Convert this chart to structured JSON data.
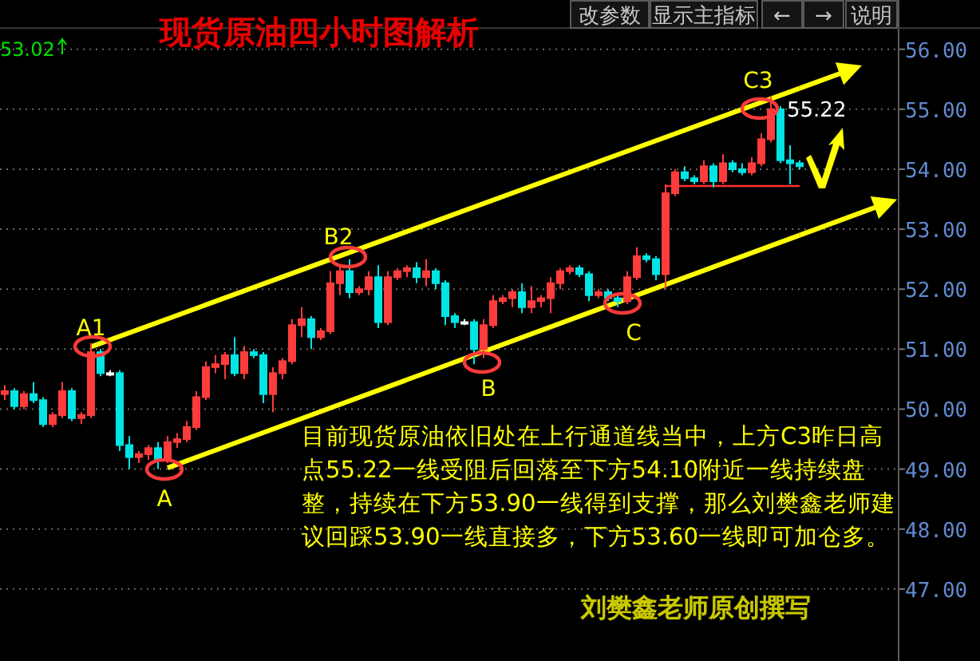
{
  "chart_data": {
    "type": "candlestick",
    "title": "现货原油四小时图解析",
    "categories": [
      null,
      null,
      null,
      null,
      null,
      null,
      null,
      null,
      null,
      null,
      null,
      null,
      null,
      null,
      null,
      null,
      null,
      null,
      null,
      null,
      null,
      null,
      null,
      null,
      null,
      null,
      null,
      null,
      null,
      null,
      null,
      null,
      null,
      null,
      null,
      null,
      null,
      null,
      null,
      null,
      null,
      null,
      null,
      null,
      null,
      null,
      null,
      null,
      null,
      null,
      null,
      null,
      null,
      null,
      null,
      null,
      null,
      null,
      null,
      null,
      null,
      null,
      null,
      null,
      null,
      null,
      null,
      null,
      null,
      null,
      null,
      null,
      null,
      null,
      null,
      null,
      null,
      null,
      null,
      null,
      null,
      null,
      null,
      null
    ],
    "ohlc": [
      [
        50.25,
        50.4,
        50.15,
        50.3
      ],
      [
        50.3,
        50.35,
        50.0,
        50.05
      ],
      [
        50.05,
        50.3,
        50.0,
        50.25
      ],
      [
        50.25,
        50.45,
        50.1,
        50.15
      ],
      [
        50.15,
        50.2,
        49.7,
        49.75
      ],
      [
        49.75,
        49.95,
        49.7,
        49.9
      ],
      [
        49.9,
        50.45,
        49.85,
        50.3
      ],
      [
        50.3,
        50.35,
        49.8,
        49.85
      ],
      [
        49.85,
        49.95,
        49.75,
        49.9
      ],
      [
        49.9,
        51.1,
        49.85,
        50.95
      ],
      [
        50.95,
        51.0,
        50.55,
        50.6
      ],
      [
        50.6,
        50.65,
        50.55,
        50.6
      ],
      [
        50.6,
        50.65,
        49.3,
        49.4
      ],
      [
        49.4,
        49.55,
        49.0,
        49.2
      ],
      [
        49.2,
        49.3,
        49.1,
        49.25
      ],
      [
        49.25,
        49.4,
        49.15,
        49.35
      ],
      [
        49.35,
        49.45,
        49.0,
        49.15
      ],
      [
        49.15,
        49.55,
        49.1,
        49.45
      ],
      [
        49.45,
        49.6,
        49.35,
        49.5
      ],
      [
        49.5,
        49.8,
        49.45,
        49.7
      ],
      [
        49.7,
        50.3,
        49.65,
        50.2
      ],
      [
        50.2,
        50.8,
        50.15,
        50.7
      ],
      [
        50.7,
        50.9,
        50.6,
        50.75
      ],
      [
        50.75,
        50.95,
        50.5,
        50.9
      ],
      [
        50.9,
        51.2,
        50.55,
        50.6
      ],
      [
        50.6,
        51.05,
        50.5,
        50.95
      ],
      [
        50.95,
        51.0,
        50.85,
        50.9
      ],
      [
        50.9,
        50.95,
        50.1,
        50.25
      ],
      [
        50.25,
        50.7,
        49.95,
        50.6
      ],
      [
        50.6,
        50.85,
        50.5,
        50.8
      ],
      [
        50.8,
        51.5,
        50.75,
        51.4
      ],
      [
        51.4,
        51.7,
        51.2,
        51.5
      ],
      [
        51.5,
        51.55,
        51.0,
        51.2
      ],
      [
        51.2,
        51.35,
        51.15,
        51.3
      ],
      [
        51.3,
        52.3,
        51.25,
        52.1
      ],
      [
        52.1,
        52.4,
        51.9,
        52.3
      ],
      [
        52.3,
        52.5,
        51.85,
        51.95
      ],
      [
        51.95,
        52.05,
        51.9,
        52.0
      ],
      [
        52.0,
        52.3,
        51.9,
        52.2
      ],
      [
        52.2,
        52.4,
        51.35,
        51.45
      ],
      [
        51.45,
        52.3,
        51.4,
        52.2
      ],
      [
        52.2,
        52.35,
        52.15,
        52.3
      ],
      [
        52.3,
        52.4,
        52.2,
        52.35
      ],
      [
        52.35,
        52.45,
        52.1,
        52.2
      ],
      [
        52.2,
        52.5,
        52.05,
        52.3
      ],
      [
        52.3,
        52.35,
        52.0,
        52.1
      ],
      [
        52.1,
        52.15,
        51.4,
        51.55
      ],
      [
        51.55,
        51.6,
        51.35,
        51.45
      ],
      [
        51.45,
        51.5,
        51.4,
        51.45
      ],
      [
        51.45,
        51.5,
        50.75,
        51.0
      ],
      [
        51.0,
        51.5,
        50.85,
        51.4
      ],
      [
        51.4,
        51.9,
        51.35,
        51.8
      ],
      [
        51.8,
        51.9,
        51.75,
        51.85
      ],
      [
        51.85,
        52.0,
        51.7,
        51.95
      ],
      [
        51.95,
        52.1,
        51.6,
        51.7
      ],
      [
        51.7,
        52.05,
        51.6,
        51.8
      ],
      [
        51.8,
        51.9,
        51.7,
        51.85
      ],
      [
        51.85,
        52.2,
        51.6,
        52.1
      ],
      [
        52.1,
        52.35,
        52.0,
        52.3
      ],
      [
        52.3,
        52.4,
        52.25,
        52.35
      ],
      [
        52.35,
        52.4,
        52.2,
        52.25
      ],
      [
        52.25,
        52.3,
        51.8,
        51.9
      ],
      [
        51.9,
        52.0,
        51.85,
        51.95
      ],
      [
        51.95,
        52.0,
        51.8,
        51.85
      ],
      [
        51.85,
        51.9,
        51.7,
        51.8
      ],
      [
        51.8,
        52.3,
        51.75,
        52.2
      ],
      [
        52.2,
        52.7,
        52.15,
        52.55
      ],
      [
        52.55,
        52.6,
        52.45,
        52.5
      ],
      [
        52.5,
        52.55,
        52.15,
        52.25
      ],
      [
        52.25,
        53.75,
        52.0,
        53.6
      ],
      [
        53.6,
        54.0,
        53.55,
        53.95
      ],
      [
        53.95,
        54.05,
        53.8,
        53.85
      ],
      [
        53.85,
        53.9,
        53.75,
        53.8
      ],
      [
        53.8,
        54.15,
        53.75,
        54.05
      ],
      [
        54.05,
        54.1,
        53.7,
        53.8
      ],
      [
        53.8,
        54.25,
        53.75,
        54.1
      ],
      [
        54.1,
        54.15,
        53.95,
        54.0
      ],
      [
        54.0,
        54.1,
        53.9,
        53.95
      ],
      [
        53.95,
        54.2,
        53.9,
        54.1
      ],
      [
        54.1,
        54.6,
        54.05,
        54.5
      ],
      [
        54.5,
        55.22,
        54.45,
        55.0
      ],
      [
        55.0,
        55.05,
        54.1,
        54.15
      ],
      [
        54.15,
        54.4,
        53.75,
        54.1
      ],
      [
        54.1,
        54.15,
        54.0,
        54.05
      ]
    ],
    "series": [
      {
        "type": "line",
        "color": "#ffff00",
        "values": [
          null,
          null,
          null,
          null,
          null,
          null,
          null,
          null,
          null,
          51.04,
          null,
          null,
          null,
          null,
          null,
          null,
          null,
          null,
          null,
          null,
          null,
          null,
          null,
          null,
          null,
          null,
          null,
          null,
          null,
          null,
          null,
          null,
          null,
          null,
          null,
          null,
          null,
          null,
          null,
          null,
          null,
          null,
          null,
          null,
          null,
          null,
          null,
          null,
          null,
          null,
          null,
          null,
          null,
          null,
          null,
          null,
          null,
          null,
          null,
          null,
          null,
          null,
          null,
          null,
          null,
          null,
          null,
          null,
          null,
          null,
          null,
          null,
          null,
          null,
          null,
          null,
          null,
          null,
          null,
          null,
          null,
          null,
          null,
          55.35
        ]
      },
      {
        "type": "line",
        "color": "#ffff00",
        "values": [
          null,
          null,
          null,
          null,
          null,
          null,
          null,
          null,
          null,
          null,
          null,
          null,
          null,
          null,
          null,
          null,
          null,
          49.02,
          null,
          null,
          null,
          null,
          null,
          null,
          null,
          null,
          null,
          null,
          null,
          null,
          null,
          null,
          null,
          null,
          null,
          null,
          null,
          null,
          null,
          null,
          null,
          null,
          null,
          null,
          null,
          null,
          null,
          null,
          null,
          null,
          null,
          null,
          null,
          null,
          null,
          null,
          null,
          null,
          null,
          null,
          null,
          null,
          null,
          null,
          null,
          null,
          null,
          null,
          null,
          null,
          null,
          null,
          null,
          null,
          null,
          null,
          null,
          null,
          null,
          null,
          null,
          null,
          null,
          52.9
        ]
      },
      {
        "type": "line",
        "color": "#ff3030",
        "values": [
          null,
          null,
          null,
          null,
          null,
          null,
          null,
          null,
          null,
          null,
          null,
          null,
          null,
          null,
          null,
          null,
          null,
          null,
          null,
          null,
          null,
          null,
          null,
          null,
          null,
          null,
          null,
          null,
          null,
          null,
          null,
          null,
          null,
          null,
          null,
          null,
          null,
          null,
          null,
          null,
          null,
          null,
          null,
          null,
          null,
          null,
          null,
          null,
          null,
          null,
          null,
          null,
          null,
          null,
          null,
          null,
          null,
          null,
          null,
          null,
          null,
          null,
          null,
          null,
          null,
          null,
          null,
          null,
          null,
          53.72,
          null,
          null,
          null,
          null,
          null,
          null,
          null,
          null,
          null,
          null,
          null,
          null,
          null,
          53.72
        ]
      }
    ],
    "ylim": [
      45.8,
      56.3
    ],
    "yticks": [
      {
        "value": 47,
        "label": "47.00"
      },
      {
        "value": 48,
        "label": "48.00"
      },
      {
        "value": 49,
        "label": "49.00"
      },
      {
        "value": 50,
        "label": "50.00"
      },
      {
        "value": 51,
        "label": "51.00"
      },
      {
        "value": 52,
        "label": "52.00"
      },
      {
        "value": 53,
        "label": "53.00"
      },
      {
        "value": 54,
        "label": "54.00"
      },
      {
        "value": 55,
        "label": "55.00"
      },
      {
        "value": 56,
        "label": "56.00"
      }
    ],
    "tick_labels": "y",
    "grid": true,
    "annotations": [
      "A1",
      "A",
      "B2",
      "B",
      "C",
      "C3",
      "53.02",
      "改参数",
      "显示主指标",
      "←",
      "→",
      "说明",
      "55.22",
      "目前现货原油依旧处在上行通道线当中，上方C3昨日高点55.22一线受阻后回落至下方54.10附近一线持续盘整，持续在下方53.90一线得到支撑，那么刘樊鑫老师建议回踩53.90一线直接多，下方53.60一线即可加仓多。",
      "刘樊鑫老师原创撰写"
    ]
  }
}
